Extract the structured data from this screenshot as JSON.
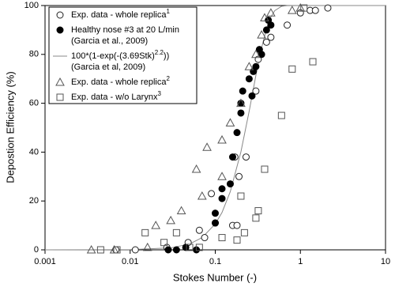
{
  "chart_data": {
    "type": "scatter",
    "xlabel": "Stokes Number (-)",
    "ylabel": "Depostion Efficiency (%)",
    "xscale": "log",
    "xlim": [
      0.001,
      10
    ],
    "xticks": [
      0.001,
      0.01,
      0.1,
      1,
      10
    ],
    "ylim": [
      0,
      100
    ],
    "yticks": [
      0,
      20,
      40,
      60,
      80,
      100
    ],
    "legend": "upper left",
    "series": [
      {
        "name": "Exp. data - whole replica",
        "name_sup": "1",
        "marker": "circle-open",
        "color": "#222222",
        "x": [
          0.0068,
          0.0115,
          0.027,
          0.048,
          0.065,
          0.075,
          0.09,
          0.1,
          0.16,
          0.17,
          0.18,
          0.19,
          0.23,
          0.3,
          0.32,
          0.4,
          0.45,
          0.7,
          1,
          1.3,
          1.5,
          2.1
        ],
        "values": [
          0,
          0,
          1,
          3,
          8,
          5,
          23,
          11,
          10,
          38,
          10,
          30,
          38,
          65,
          78,
          85,
          87,
          92,
          97,
          98,
          98,
          99
        ]
      },
      {
        "name": "Healthy nose #3 at 20 L/min",
        "note": "(Garcia et al., 2009)",
        "marker": "circle-filled",
        "color": "#000000",
        "x": [
          0.028,
          0.035,
          0.045,
          0.06,
          0.1,
          0.1,
          0.12,
          0.12,
          0.15,
          0.16,
          0.18,
          0.2,
          0.2,
          0.21,
          0.25,
          0.27,
          0.28,
          0.3,
          0.33,
          0.35,
          0.4,
          0.42,
          0.45
        ],
        "values": [
          0,
          0,
          1,
          0,
          11,
          15,
          21,
          25,
          27,
          38,
          48,
          56,
          60,
          65,
          70,
          63,
          73,
          75,
          82,
          80,
          90,
          94,
          92
        ]
      },
      {
        "name": "100*(1-exp(-(3.69Stk)",
        "name_sup": "2.2",
        "name_tail": "))",
        "note": "(Garcia et al, 2009)",
        "marker": "line",
        "color": "#888888",
        "x": [
          0.001,
          0.01,
          0.03,
          0.05,
          0.07,
          0.1,
          0.12,
          0.15,
          0.2,
          0.25,
          0.3,
          0.35,
          0.4,
          0.45,
          0.5,
          0.6,
          0.7,
          1,
          10
        ],
        "values": [
          0,
          0.07,
          0.79,
          2.4,
          5.0,
          10.6,
          15.3,
          23.8,
          40.1,
          56.7,
          71.4,
          82.7,
          90.5,
          95.3,
          97.9,
          99.7,
          99.97,
          100,
          100
        ]
      },
      {
        "name": "Exp. data - whole replica",
        "name_sup": "2",
        "marker": "triangle-open",
        "color": "#555555",
        "x": [
          0.0035,
          0.0065,
          0.016,
          0.02,
          0.03,
          0.04,
          0.06,
          0.07,
          0.08,
          0.12,
          0.12,
          0.15,
          0.2,
          0.25,
          0.3,
          0.35,
          0.38,
          0.45,
          0.8,
          1
        ],
        "values": [
          0,
          0,
          1,
          10,
          12,
          16,
          33,
          22,
          42,
          30,
          45,
          52,
          60,
          75,
          80,
          88,
          95,
          97,
          98,
          99
        ]
      },
      {
        "name": "Exp. data - w/o Larynx",
        "name_sup": "3",
        "marker": "square-open",
        "color": "#555555",
        "x": [
          0.0045,
          0.007,
          0.015,
          0.025,
          0.035,
          0.05,
          0.065,
          0.12,
          0.18,
          0.2,
          0.22,
          0.3,
          0.32,
          0.38,
          0.6,
          0.8,
          1.1,
          1.4
        ],
        "values": [
          0,
          0,
          7,
          3,
          7,
          1,
          1,
          5,
          4,
          22,
          7,
          13,
          16,
          33,
          55,
          74,
          99,
          77
        ]
      }
    ]
  }
}
